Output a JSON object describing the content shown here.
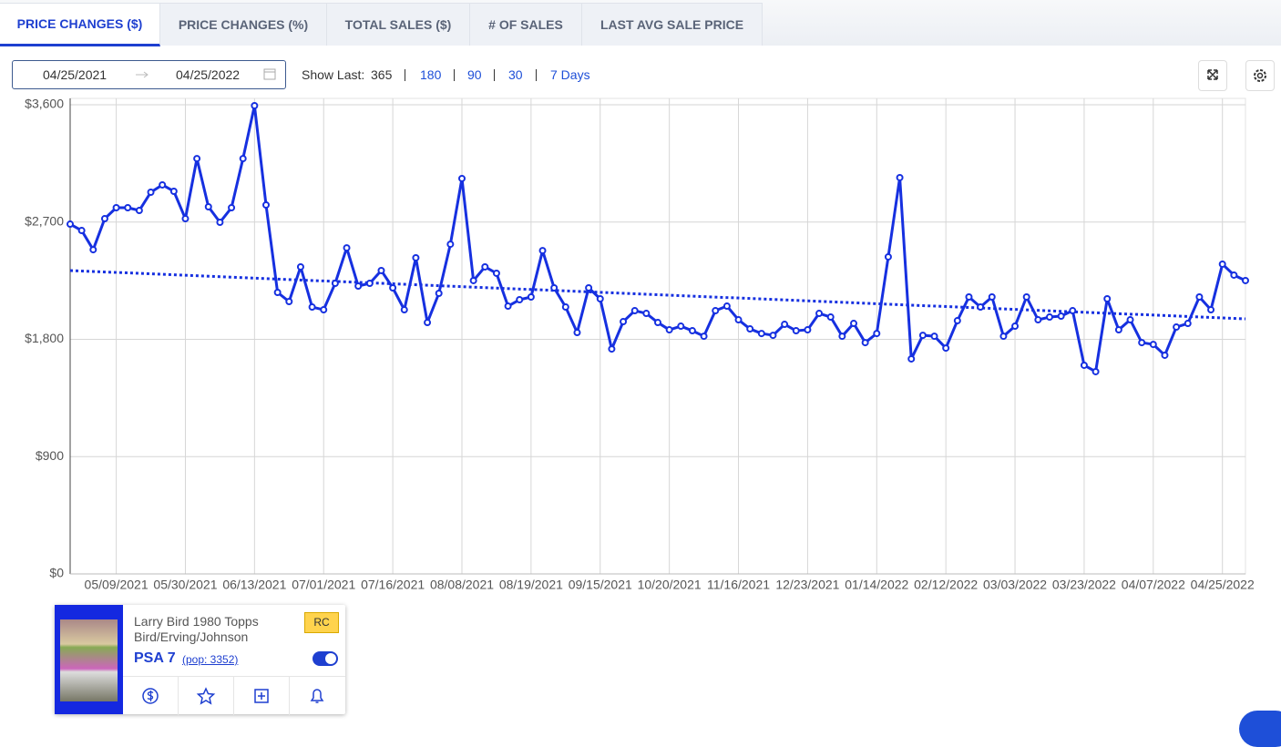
{
  "tabs": [
    "PRICE CHANGES ($)",
    "PRICE CHANGES (%)",
    "TOTAL SALES ($)",
    "# OF SALES",
    "LAST AVG SALE PRICE"
  ],
  "date_range": {
    "start": "04/25/2021",
    "end": "04/25/2022"
  },
  "show_last": {
    "label": "Show Last:",
    "options": [
      "365",
      "180",
      "90",
      "30",
      "7 Days"
    ]
  },
  "chart_data": {
    "type": "line",
    "categories": [
      null,
      null,
      null,
      null,
      "05/09/2021",
      null,
      null,
      null,
      null,
      null,
      "05/30/2021",
      null,
      null,
      null,
      null,
      null,
      "06/13/2021",
      null,
      null,
      null,
      null,
      null,
      "07/01/2021",
      null,
      null,
      null,
      null,
      null,
      "07/16/2021",
      null,
      null,
      null,
      null,
      null,
      "08/08/2021",
      null,
      null,
      null,
      null,
      null,
      "08/19/2021",
      null,
      null,
      null,
      null,
      null,
      "09/15/2021",
      null,
      null,
      null,
      null,
      null,
      "10/20/2021",
      null,
      null,
      null,
      null,
      null,
      "11/16/2021",
      null,
      null,
      null,
      null,
      null,
      "12/23/2021",
      null,
      null,
      null,
      null,
      null,
      "01/14/2022",
      null,
      null,
      null,
      null,
      null,
      "02/12/2022",
      null,
      null,
      null,
      null,
      null,
      "03/03/2022",
      null,
      null,
      null,
      null,
      null,
      "03/23/2022",
      null,
      null,
      null,
      null,
      null,
      "04/07/2022",
      null,
      null,
      null,
      null,
      null,
      "04/25/2022",
      null,
      null
    ],
    "values": [
      2684,
      2635,
      2488,
      2726,
      2810,
      2810,
      2789,
      2929,
      2985,
      2936,
      2726,
      3187,
      2817,
      2698,
      2810,
      3187,
      3593,
      2831,
      2160,
      2090,
      2356,
      2048,
      2027,
      2230,
      2502,
      2209,
      2230,
      2328,
      2195,
      2027,
      2426,
      1929,
      2153,
      2530,
      3034,
      2251,
      2356,
      2307,
      2055,
      2104,
      2125,
      2481,
      2195,
      2048,
      1852,
      2195,
      2111,
      1726,
      1936,
      2020,
      1999,
      1929,
      1873,
      1901,
      1866,
      1824,
      2020,
      2055,
      1950,
      1880,
      1845,
      1831,
      1915,
      1866,
      1873,
      1999,
      1971,
      1824,
      1922,
      1775,
      1845,
      2433,
      3041,
      1650,
      1831,
      1824,
      1733,
      1943,
      2125,
      2048,
      2125,
      1824,
      1901,
      2125,
      1950,
      1971,
      1978,
      2020,
      1601,
      1552,
      2111,
      1873,
      1950,
      1775,
      1761,
      1678,
      1894,
      1922,
      2125,
      2027,
      2377,
      2293,
      2251
    ],
    "color": "#1630e0",
    "trend_line": [
      2328,
      1957
    ],
    "ylim": [
      0,
      3600
    ],
    "yticks": [
      {
        "value": 0,
        "label": "$0"
      },
      {
        "value": 900,
        "label": "$900"
      },
      {
        "value": 1800,
        "label": "$1,800"
      },
      {
        "value": 2700,
        "label": "$2,700"
      },
      {
        "value": 3600,
        "label": "$3,600"
      }
    ],
    "grid": true
  },
  "card": {
    "title": "Larry Bird 1980 Topps",
    "subtitle": "Bird/Erving/Johnson",
    "badge": "RC",
    "grade": "PSA 7",
    "pop": "(pop: 3352)"
  }
}
